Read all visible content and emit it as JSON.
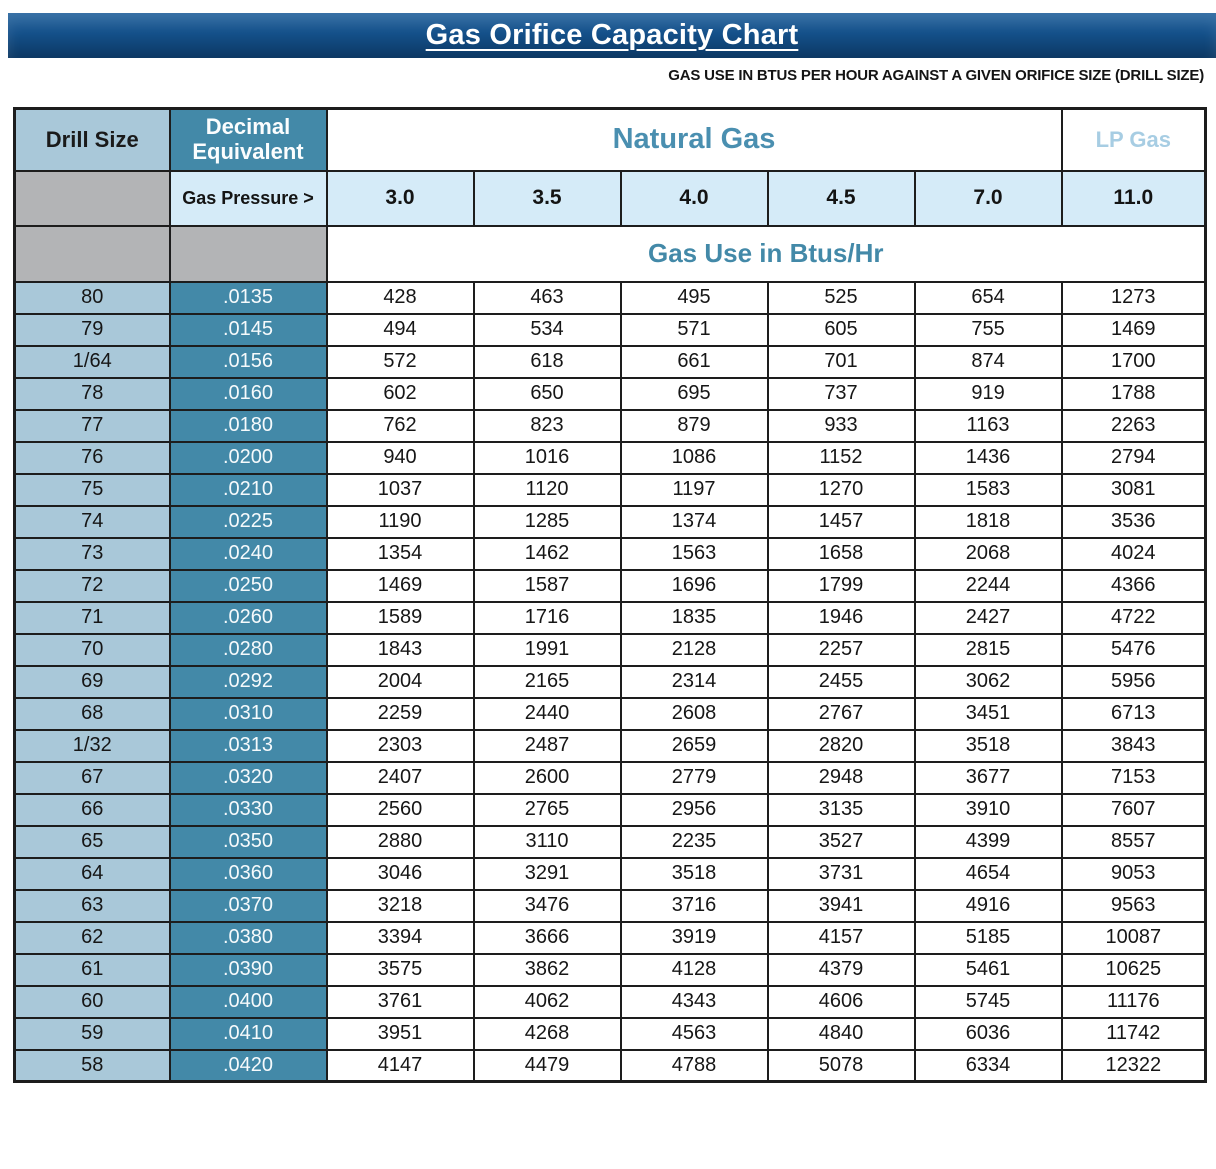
{
  "header": {
    "title": "Gas Orifice Capacity Chart",
    "subtitle": "GAS USE IN BTUS PER HOUR AGAINST A GIVEN ORIFICE SIZE (DRILL SIZE)"
  },
  "table": {
    "drill_size_header": "Drill Size",
    "decimal_equivalent_header": "Decimal Equivalent",
    "natural_gas_header": "Natural Gas",
    "lp_gas_header": "LP Gas",
    "gas_pressure_label": "Gas Pressure >",
    "pressures": [
      "3.0",
      "3.5",
      "4.0",
      "4.5",
      "7.0",
      "11.0"
    ],
    "btus_header": "Gas Use in Btus/Hr"
  },
  "colors": {
    "title_bar_top": "#20609b",
    "title_bar_bottom": "#0c3863",
    "drill_column_blue": "#a9c8d9",
    "decimal_column_teal": "#4389a8",
    "pressure_row_pale_blue": "#d5ebf8",
    "spacer_gray": "#b3b4b6",
    "natural_gas_text": "#4a8fb0",
    "lp_gas_text": "#a7cde3",
    "border": "#1d1d1d"
  },
  "chart_data": {
    "type": "table",
    "title": "Gas Orifice Capacity Chart",
    "subtitle": "GAS USE IN BTUS PER HOUR AGAINST A GIVEN ORIFICE SIZE (DRILL SIZE)",
    "units": "Gas Use in Btus/Hr",
    "column_groups": [
      {
        "label": "Natural Gas",
        "pressure_columns": [
          "3.0",
          "3.5",
          "4.0",
          "4.5",
          "7.0"
        ]
      },
      {
        "label": "LP Gas",
        "pressure_columns": [
          "11.0"
        ]
      }
    ],
    "columns": [
      "Drill Size",
      "Decimal Equivalent",
      "3.0",
      "3.5",
      "4.0",
      "4.5",
      "7.0",
      "11.0"
    ],
    "rows": [
      [
        "80",
        ".0135",
        "428",
        "463",
        "495",
        "525",
        "654",
        "1273"
      ],
      [
        "79",
        ".0145",
        "494",
        "534",
        "571",
        "605",
        "755",
        "1469"
      ],
      [
        "1/64",
        ".0156",
        "572",
        "618",
        "661",
        "701",
        "874",
        "1700"
      ],
      [
        "78",
        ".0160",
        "602",
        "650",
        "695",
        "737",
        "919",
        "1788"
      ],
      [
        "77",
        ".0180",
        "762",
        "823",
        "879",
        "933",
        "1163",
        "2263"
      ],
      [
        "76",
        ".0200",
        "940",
        "1016",
        "1086",
        "1152",
        "1436",
        "2794"
      ],
      [
        "75",
        ".0210",
        "1037",
        "1120",
        "1197",
        "1270",
        "1583",
        "3081"
      ],
      [
        "74",
        ".0225",
        "1190",
        "1285",
        "1374",
        "1457",
        "1818",
        "3536"
      ],
      [
        "73",
        ".0240",
        "1354",
        "1462",
        "1563",
        "1658",
        "2068",
        "4024"
      ],
      [
        "72",
        ".0250",
        "1469",
        "1587",
        "1696",
        "1799",
        "2244",
        "4366"
      ],
      [
        "71",
        ".0260",
        "1589",
        "1716",
        "1835",
        "1946",
        "2427",
        "4722"
      ],
      [
        "70",
        ".0280",
        "1843",
        "1991",
        "2128",
        "2257",
        "2815",
        "5476"
      ],
      [
        "69",
        ".0292",
        "2004",
        "2165",
        "2314",
        "2455",
        "3062",
        "5956"
      ],
      [
        "68",
        ".0310",
        "2259",
        "2440",
        "2608",
        "2767",
        "3451",
        "6713"
      ],
      [
        "1/32",
        ".0313",
        "2303",
        "2487",
        "2659",
        "2820",
        "3518",
        "3843"
      ],
      [
        "67",
        ".0320",
        "2407",
        "2600",
        "2779",
        "2948",
        "3677",
        "7153"
      ],
      [
        "66",
        ".0330",
        "2560",
        "2765",
        "2956",
        "3135",
        "3910",
        "7607"
      ],
      [
        "65",
        ".0350",
        "2880",
        "3110",
        "2235",
        "3527",
        "4399",
        "8557"
      ],
      [
        "64",
        ".0360",
        "3046",
        "3291",
        "3518",
        "3731",
        "4654",
        "9053"
      ],
      [
        "63",
        ".0370",
        "3218",
        "3476",
        "3716",
        "3941",
        "4916",
        "9563"
      ],
      [
        "62",
        ".0380",
        "3394",
        "3666",
        "3919",
        "4157",
        "5185",
        "10087"
      ],
      [
        "61",
        ".0390",
        "3575",
        "3862",
        "4128",
        "4379",
        "5461",
        "10625"
      ],
      [
        "60",
        ".0400",
        "3761",
        "4062",
        "4343",
        "4606",
        "5745",
        "11176"
      ],
      [
        "59",
        ".0410",
        "3951",
        "4268",
        "4563",
        "4840",
        "6036",
        "11742"
      ],
      [
        "58",
        ".0420",
        "4147",
        "4479",
        "4788",
        "5078",
        "6334",
        "12322"
      ]
    ]
  }
}
